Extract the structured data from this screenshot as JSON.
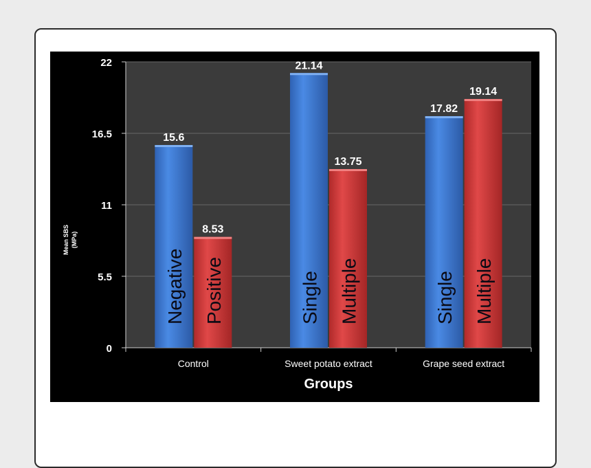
{
  "chart_data": {
    "type": "bar",
    "categories": [
      "Control",
      "Sweet potato extract",
      "Grape seed extract"
    ],
    "bars": [
      {
        "category": "Control",
        "label": "Negative",
        "value": 15.6,
        "value_label": "15.6",
        "color": "blue"
      },
      {
        "category": "Control",
        "label": "Positive",
        "value": 8.53,
        "value_label": "8.53",
        "color": "red"
      },
      {
        "category": "Sweet potato extract",
        "label": "Single",
        "value": 21.14,
        "value_label": "21.14",
        "color": "blue"
      },
      {
        "category": "Sweet potato extract",
        "label": "Multiple",
        "value": 13.75,
        "value_label": "13.75",
        "color": "red"
      },
      {
        "category": "Grape seed extract",
        "label": "Single",
        "value": 17.82,
        "value_label": "17.82",
        "color": "blue"
      },
      {
        "category": "Grape seed extract",
        "label": "Multiple",
        "value": 19.14,
        "value_label": "19.14",
        "color": "red"
      }
    ],
    "xlabel": "Groups",
    "ylabel_line1": "Mean SBS",
    "ylabel_line2": "(MPa)",
    "yticks": [
      "0",
      "5.5",
      "11",
      "16.5",
      "22"
    ],
    "ylim": [
      0,
      22
    ],
    "grid": true,
    "legend": "none",
    "colors": {
      "blue": "#3c7ad6",
      "red": "#d43b3b",
      "plot_background": "#3b3b3b",
      "panel_background": "#000000",
      "gridline": "#6a6a6a"
    }
  }
}
